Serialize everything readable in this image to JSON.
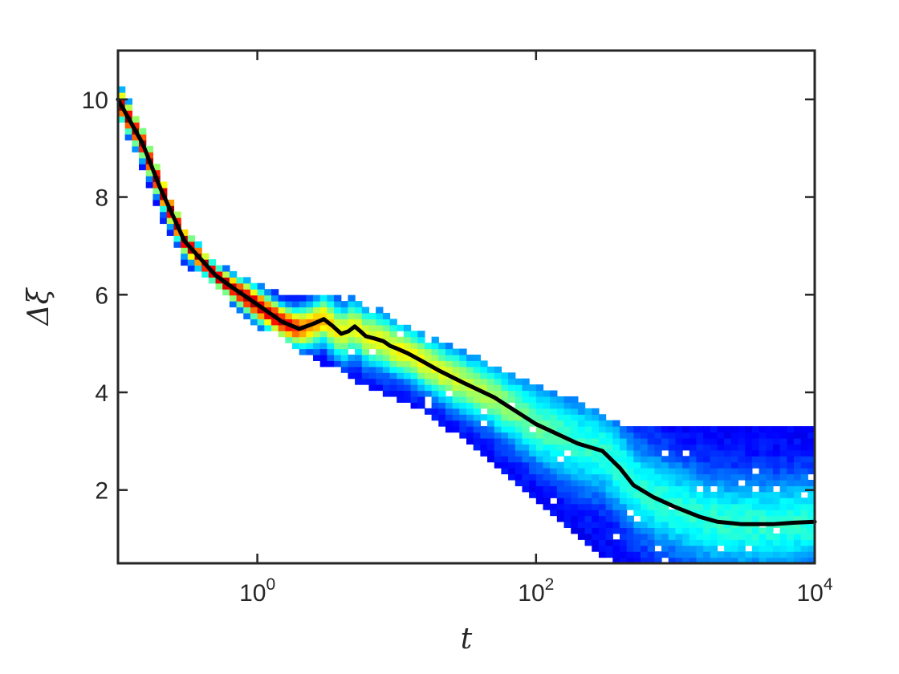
{
  "chart_data": {
    "type": "heatmap",
    "title": "",
    "xlabel": "t",
    "ylabel": "Δξ",
    "x_scale": "log",
    "xlim": [
      0.1,
      10000
    ],
    "ylim": [
      0.5,
      11
    ],
    "x_ticks": [
      {
        "value": 1,
        "base": "10",
        "exp": "0"
      },
      {
        "value": 100,
        "base": "10",
        "exp": "2"
      },
      {
        "value": 10000,
        "base": "10",
        "exp": "4"
      }
    ],
    "y_ticks": [
      {
        "value": 2,
        "label": "2"
      },
      {
        "value": 4,
        "label": "4"
      },
      {
        "value": 6,
        "label": "6"
      },
      {
        "value": 8,
        "label": "8"
      },
      {
        "value": 10,
        "label": "10"
      }
    ],
    "grid": false,
    "colormap": "jet",
    "density_band": {
      "x": [
        0.1,
        0.15,
        0.2,
        0.3,
        0.5,
        0.7,
        1,
        1.5,
        2,
        3,
        4,
        5,
        6,
        7,
        8,
        10,
        15,
        20,
        30,
        50,
        100,
        200,
        300,
        400,
        500,
        700,
        1000,
        2000,
        5000,
        10000
      ],
      "lower": [
        9.7,
        8.6,
        7.7,
        6.7,
        6.2,
        5.8,
        5.4,
        5.2,
        4.9,
        4.6,
        4.5,
        4.3,
        4.2,
        4.1,
        4.0,
        3.9,
        3.7,
        3.4,
        3.1,
        2.6,
        1.8,
        1.1,
        0.7,
        0.5,
        0.5,
        0.5,
        0.5,
        0.5,
        0.5,
        0.5
      ],
      "upper": [
        10.4,
        9.3,
        8.4,
        7.3,
        6.6,
        6.4,
        6.2,
        6.0,
        5.9,
        5.9,
        6.0,
        5.9,
        5.7,
        5.7,
        5.6,
        5.4,
        5.2,
        5.0,
        4.8,
        4.5,
        4.1,
        3.8,
        3.5,
        3.3,
        3.3,
        3.3,
        3.3,
        3.3,
        3.3,
        3.3
      ]
    },
    "series": [
      {
        "values_x": [
          0.1,
          0.15,
          0.2,
          0.3,
          0.5,
          0.7,
          1,
          1.5,
          2,
          2.5,
          3,
          3.5,
          4,
          4.5,
          5,
          5.5,
          6,
          7,
          8,
          9,
          10,
          12,
          15,
          20,
          30,
          50,
          100,
          200,
          300,
          400,
          500,
          700,
          1000,
          1500,
          2000,
          3000,
          5000,
          7000,
          10000
        ],
        "values_y": [
          10.0,
          9.1,
          8.2,
          7.1,
          6.4,
          6.1,
          5.8,
          5.45,
          5.3,
          5.4,
          5.5,
          5.35,
          5.2,
          5.25,
          5.35,
          5.25,
          5.15,
          5.1,
          5.05,
          4.95,
          4.9,
          4.8,
          4.65,
          4.45,
          4.2,
          3.9,
          3.35,
          2.95,
          2.8,
          2.45,
          2.1,
          1.85,
          1.65,
          1.45,
          1.35,
          1.3,
          1.3,
          1.33,
          1.35
        ]
      }
    ]
  }
}
